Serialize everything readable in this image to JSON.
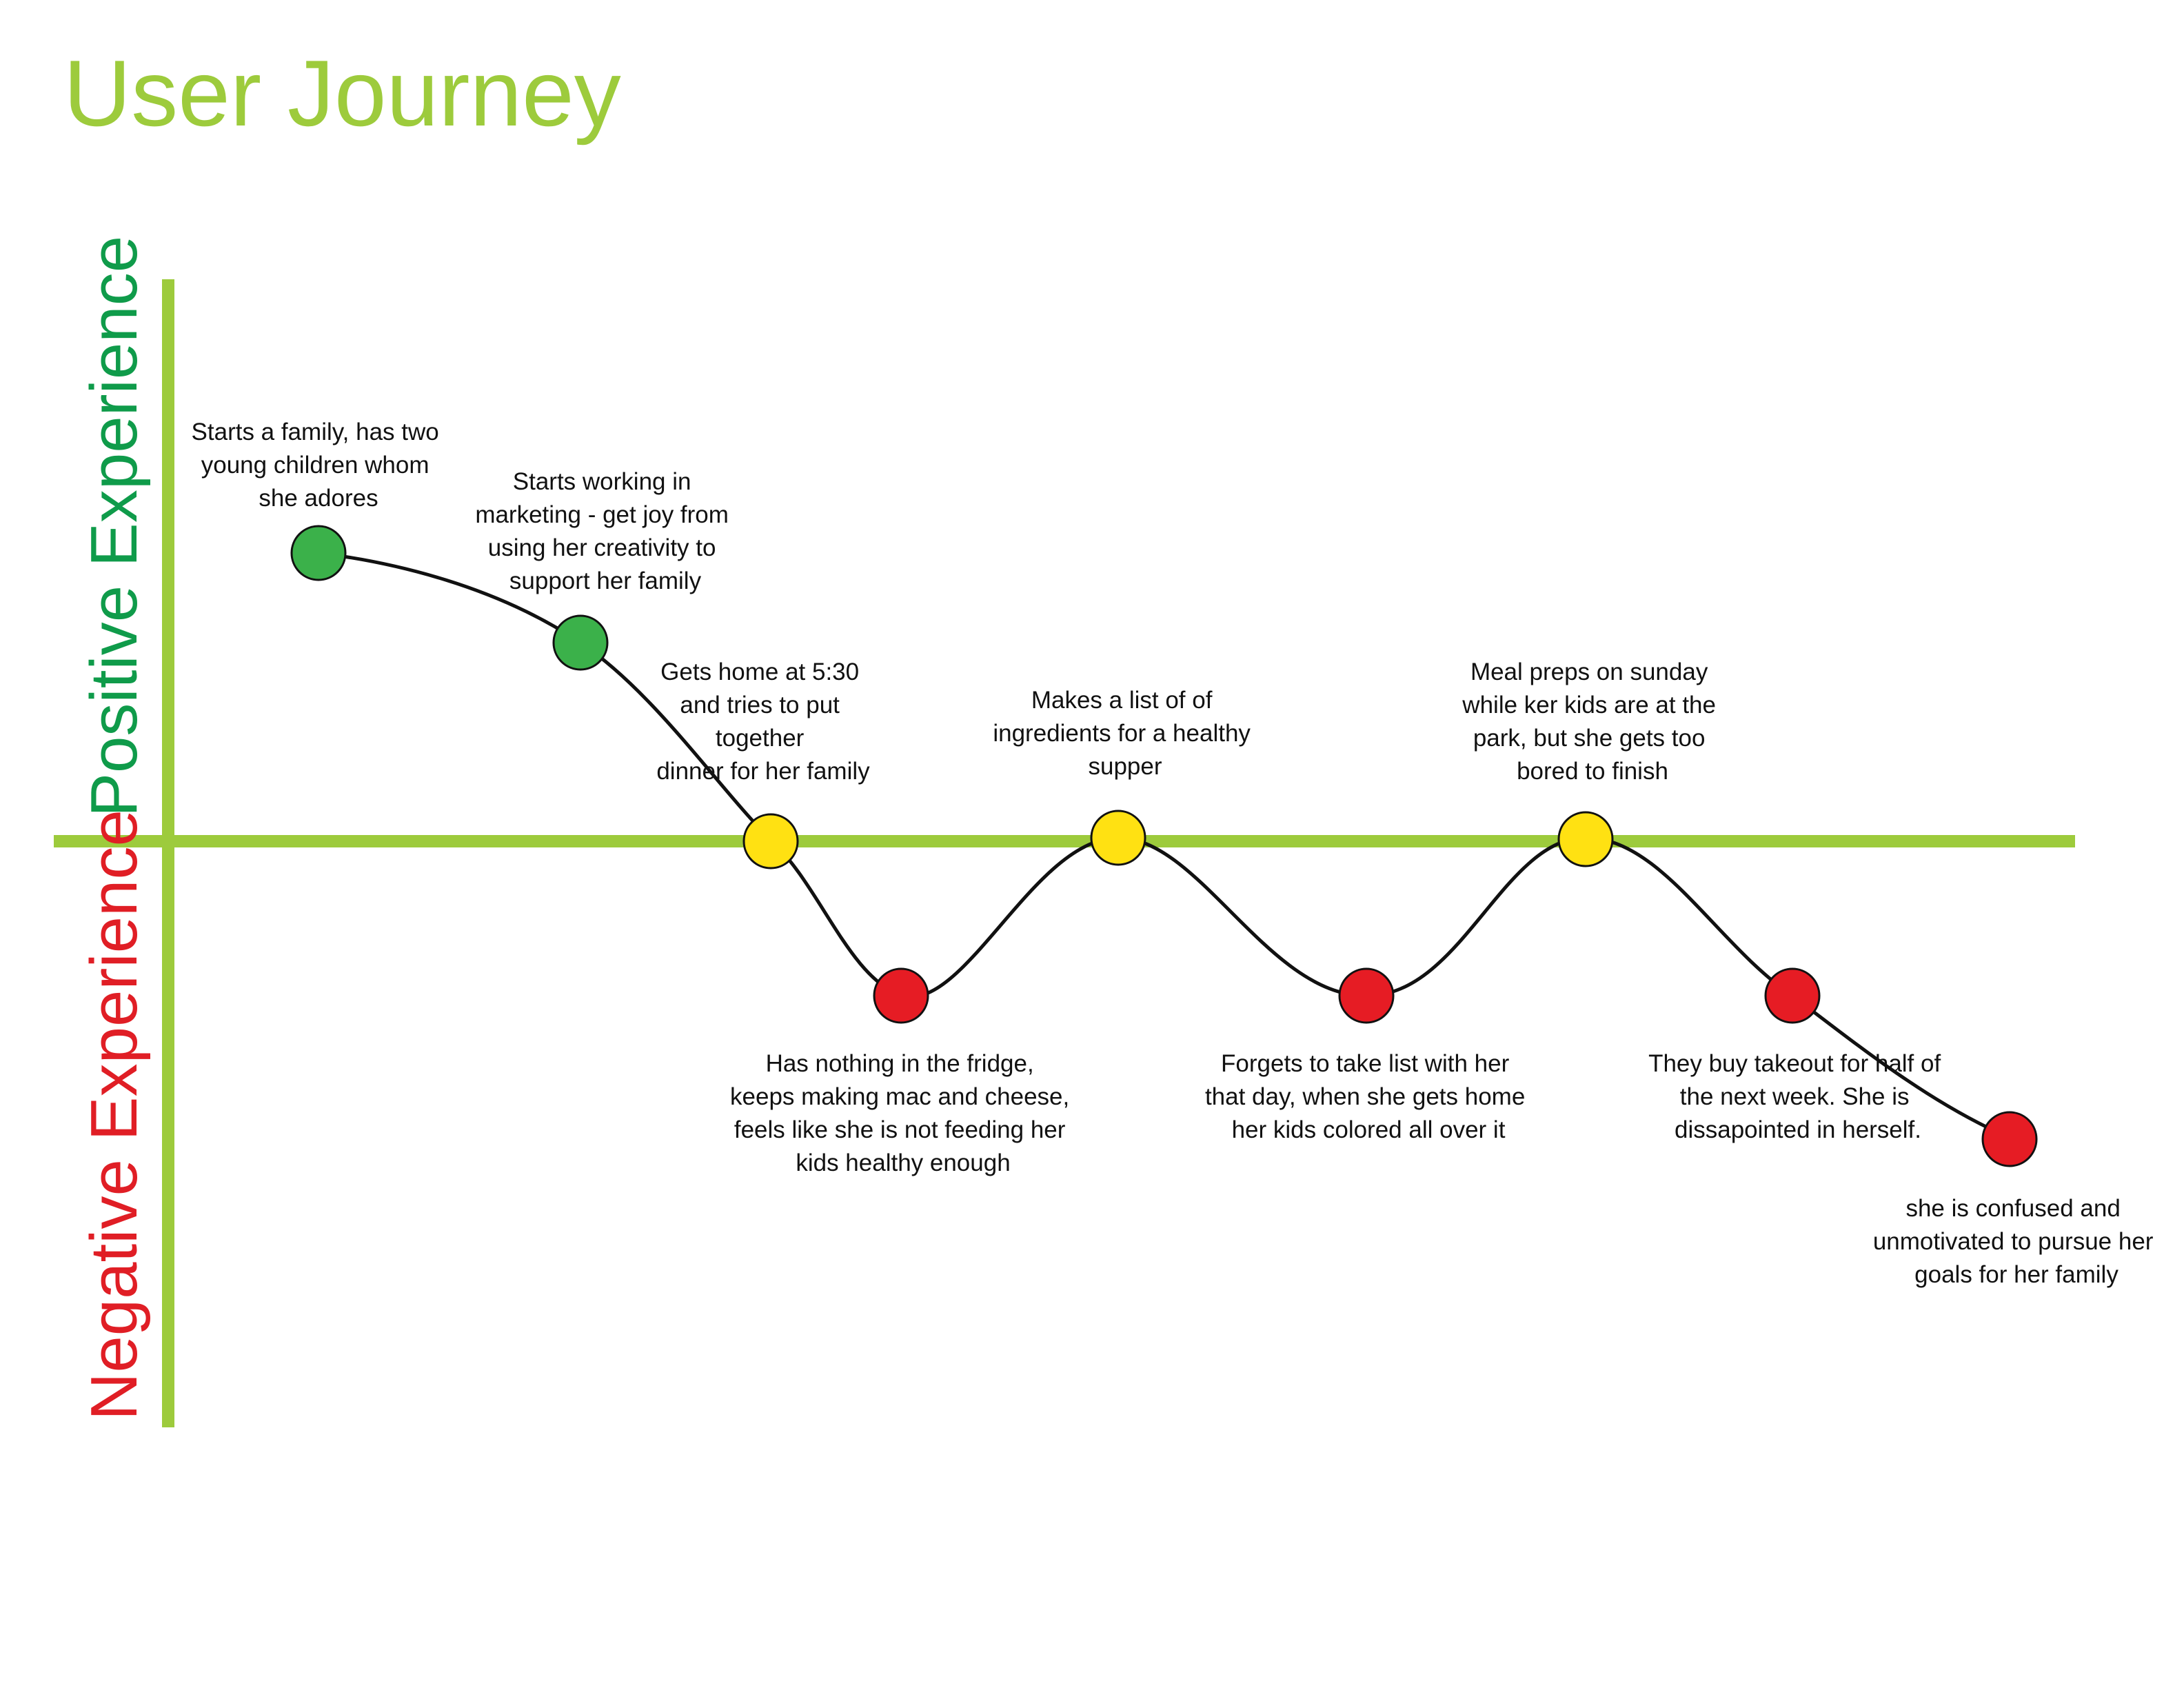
{
  "title": "User Journey",
  "axis": {
    "positive_label": "Positive Experience",
    "negative_label": "Negative Experience"
  },
  "colors": {
    "axis": "#9dcb3c",
    "title": "#9dcb3c",
    "positive_text": "#0f9b4a",
    "negative_text": "#e01e25",
    "positive_dot": "#3bb14a",
    "neutral_dot": "#ffe112",
    "negative_dot": "#e61c24",
    "curve": "#111111"
  },
  "steps": [
    {
      "id": "start-family",
      "sentiment": "positive",
      "level": 2,
      "lines": [
        "Starts a family, has two",
        "young children whom",
        "she adores"
      ]
    },
    {
      "id": "starts-working",
      "sentiment": "positive",
      "level": 1.4,
      "lines": [
        "Starts working in",
        "marketing - get joy from",
        "using her creativity to",
        "support her family"
      ]
    },
    {
      "id": "gets-home",
      "sentiment": "neutral",
      "level": 0,
      "lines": [
        "Gets home at 5:30",
        "and tries to put",
        "together",
        "dinner for her family"
      ]
    },
    {
      "id": "nothing-in-fridge",
      "sentiment": "negative",
      "level": -1.1,
      "lines": [
        "Has nothing in the fridge,",
        "keeps making mac and cheese,",
        "feels like she is not feeding her",
        "kids healthy enough"
      ]
    },
    {
      "id": "makes-list",
      "sentiment": "neutral",
      "level": 0,
      "lines": [
        "Makes a list of of",
        "ingredients for a healthy",
        "supper"
      ]
    },
    {
      "id": "forgets-list",
      "sentiment": "negative",
      "level": -1.1,
      "lines": [
        "Forgets to take list with her",
        "that day, when she gets home",
        "her kids colored all over it"
      ]
    },
    {
      "id": "meal-preps",
      "sentiment": "neutral",
      "level": 0,
      "lines": [
        "Meal preps on sunday",
        "while ker kids are at the",
        "park, but she gets too",
        "bored to finish"
      ]
    },
    {
      "id": "buys-takeout",
      "sentiment": "negative",
      "level": -1.1,
      "lines": [
        "They buy takeout for half of",
        "the next week. She is",
        "dissapointed in herself."
      ]
    },
    {
      "id": "confused",
      "sentiment": "negative",
      "level": -2.1,
      "lines": [
        "she is confused and",
        "unmotivated to pursue her",
        "goals for her family"
      ]
    }
  ]
}
